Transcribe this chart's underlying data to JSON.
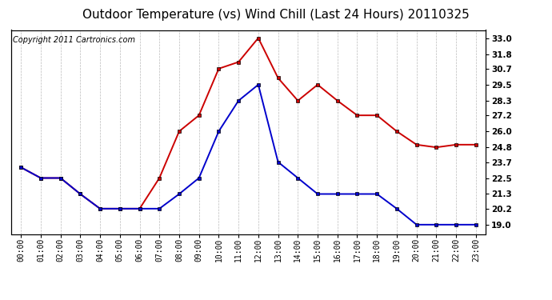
{
  "title": "Outdoor Temperature (vs) Wind Chill (Last 24 Hours) 20110325",
  "copyright": "Copyright 2011 Cartronics.com",
  "hours": [
    "00:00",
    "01:00",
    "02:00",
    "03:00",
    "04:00",
    "05:00",
    "06:00",
    "07:00",
    "08:00",
    "09:00",
    "10:00",
    "11:00",
    "12:00",
    "13:00",
    "14:00",
    "15:00",
    "16:00",
    "17:00",
    "18:00",
    "19:00",
    "20:00",
    "21:00",
    "22:00",
    "23:00"
  ],
  "temp": [
    23.3,
    22.5,
    22.5,
    21.3,
    20.2,
    20.2,
    20.2,
    22.5,
    26.0,
    27.2,
    30.7,
    31.2,
    33.0,
    30.0,
    28.3,
    29.5,
    28.3,
    27.2,
    27.2,
    26.0,
    25.0,
    24.8,
    25.0,
    25.0
  ],
  "windchill": [
    23.3,
    22.5,
    22.5,
    21.3,
    20.2,
    20.2,
    20.2,
    20.2,
    21.3,
    22.5,
    26.0,
    28.3,
    29.5,
    23.7,
    22.5,
    21.3,
    21.3,
    21.3,
    21.3,
    20.2,
    19.0,
    19.0,
    19.0,
    19.0
  ],
  "ylim_min": 18.3,
  "ylim_max": 33.6,
  "yticks": [
    19.0,
    20.2,
    21.3,
    22.5,
    23.7,
    24.8,
    26.0,
    27.2,
    28.3,
    29.5,
    30.7,
    31.8,
    33.0
  ],
  "temp_color": "#cc0000",
  "windchill_color": "#0000cc",
  "bg_color": "#ffffff",
  "grid_color": "#bbbbbb",
  "title_fontsize": 11,
  "copyright_fontsize": 7,
  "markersize": 3.5,
  "linewidth": 1.4
}
